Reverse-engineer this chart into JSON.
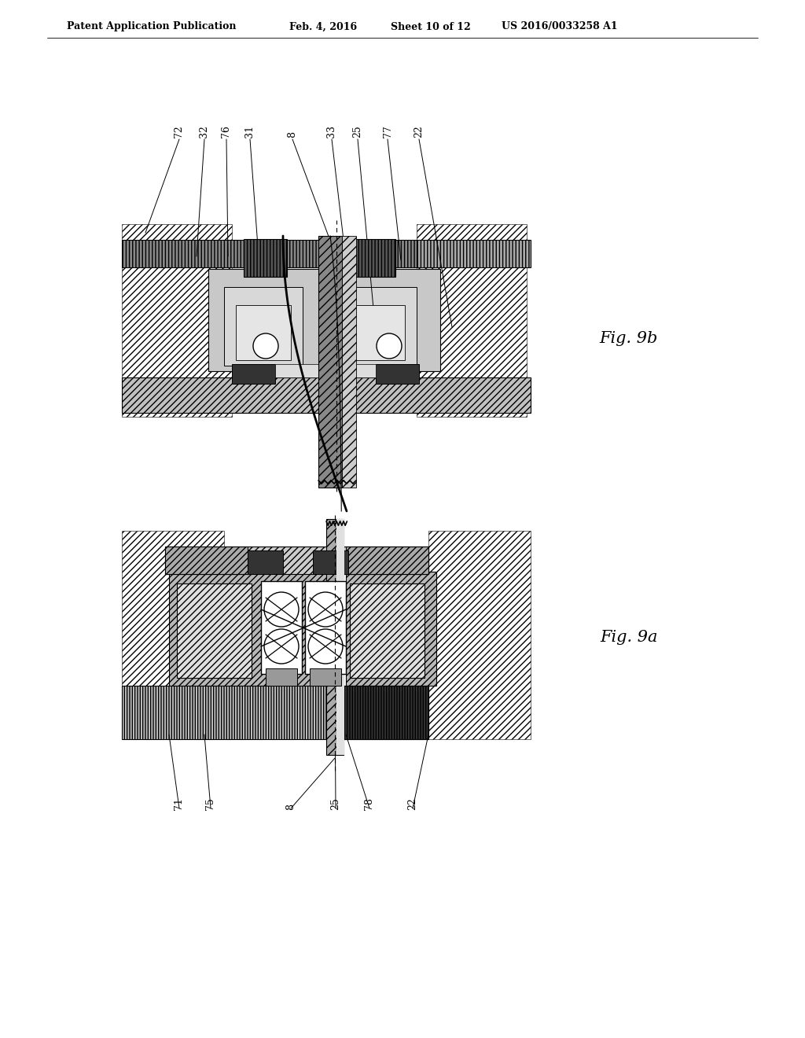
{
  "header_text1": "Patent Application Publication",
  "header_text2": "Feb. 4, 2016",
  "header_text3": "Sheet 10 of 12",
  "header_text4": "US 2016/0033258 A1",
  "fig_top_label": "Fig. 9b",
  "fig_bottom_label": "Fig. 9a",
  "top_labels": [
    "72",
    "32",
    "76",
    "31",
    "8",
    "33",
    "25",
    "77",
    "22"
  ],
  "bottom_labels": [
    "71",
    "75",
    "8",
    "25",
    "78",
    "22"
  ],
  "white": "#ffffff",
  "black": "#000000",
  "light_gray": "#cccccc",
  "med_gray": "#999999",
  "dark_gray": "#555555",
  "very_light": "#e8e8e8",
  "hatch_gray": "#aaaaaa"
}
